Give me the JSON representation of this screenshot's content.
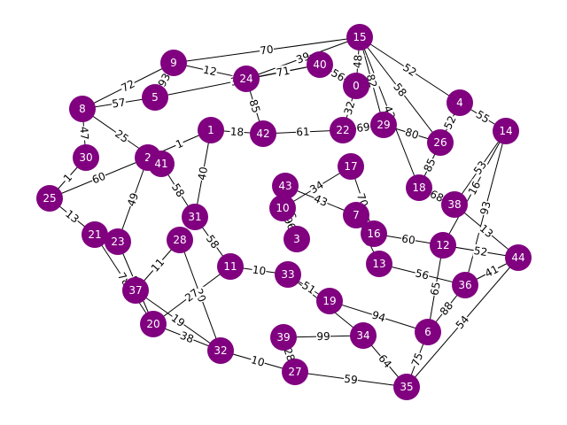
{
  "colors": {
    "node": "#800080",
    "node_text": "#ffffff",
    "edge": "#000000",
    "label_bg": "#ffffff",
    "background": "#ffffff"
  },
  "graph": {
    "nodes": [
      {
        "id": "0"
      },
      {
        "id": "1"
      },
      {
        "id": "2"
      },
      {
        "id": "3"
      },
      {
        "id": "4"
      },
      {
        "id": "5"
      },
      {
        "id": "6"
      },
      {
        "id": "7"
      },
      {
        "id": "8"
      },
      {
        "id": "9"
      },
      {
        "id": "10"
      },
      {
        "id": "11"
      },
      {
        "id": "12"
      },
      {
        "id": "13"
      },
      {
        "id": "14"
      },
      {
        "id": "15"
      },
      {
        "id": "16"
      },
      {
        "id": "17"
      },
      {
        "id": "18"
      },
      {
        "id": "19"
      },
      {
        "id": "20"
      },
      {
        "id": "21"
      },
      {
        "id": "22"
      },
      {
        "id": "23"
      },
      {
        "id": "24"
      },
      {
        "id": "25"
      },
      {
        "id": "26"
      },
      {
        "id": "27"
      },
      {
        "id": "28"
      },
      {
        "id": "29"
      },
      {
        "id": "30"
      },
      {
        "id": "31"
      },
      {
        "id": "32"
      },
      {
        "id": "33"
      },
      {
        "id": "34"
      },
      {
        "id": "35"
      },
      {
        "id": "36"
      },
      {
        "id": "37"
      },
      {
        "id": "38"
      },
      {
        "id": "39"
      },
      {
        "id": "40"
      },
      {
        "id": "41"
      },
      {
        "id": "42"
      },
      {
        "id": "43"
      },
      {
        "id": "44"
      }
    ],
    "edges": [
      {
        "source": "9",
        "target": "15",
        "weight": "70"
      },
      {
        "source": "9",
        "target": "8",
        "weight": "72"
      },
      {
        "source": "15",
        "target": "4",
        "weight": "52"
      },
      {
        "source": "15",
        "target": "26",
        "weight": "58"
      },
      {
        "source": "15",
        "target": "24",
        "weight": "39"
      },
      {
        "source": "15",
        "target": "0",
        "weight": "48"
      },
      {
        "source": "15",
        "target": "29",
        "weight": "82"
      },
      {
        "source": "15",
        "target": "18",
        "weight": "43"
      },
      {
        "source": "4",
        "target": "14",
        "weight": "55"
      },
      {
        "source": "4",
        "target": "26",
        "weight": "52"
      },
      {
        "source": "14",
        "target": "38",
        "weight": "53"
      },
      {
        "source": "14",
        "target": "12",
        "weight": "16"
      },
      {
        "source": "14",
        "target": "36",
        "weight": "93"
      },
      {
        "source": "8",
        "target": "30",
        "weight": "47"
      },
      {
        "source": "8",
        "target": "5",
        "weight": "57"
      },
      {
        "source": "8",
        "target": "41",
        "weight": "25"
      },
      {
        "source": "30",
        "target": "25",
        "weight": "1"
      },
      {
        "source": "25",
        "target": "21",
        "weight": "13"
      },
      {
        "source": "25",
        "target": "2",
        "weight": "60"
      },
      {
        "source": "21",
        "target": "20",
        "weight": "78"
      },
      {
        "source": "20",
        "target": "32",
        "weight": "38"
      },
      {
        "source": "32",
        "target": "27",
        "weight": "10"
      },
      {
        "source": "27",
        "target": "35",
        "weight": "59"
      },
      {
        "source": "35",
        "target": "6",
        "weight": "75"
      },
      {
        "source": "35",
        "target": "44",
        "weight": "54"
      },
      {
        "source": "36",
        "target": "44",
        "weight": "41"
      },
      {
        "source": "12",
        "target": "44",
        "weight": "52"
      },
      {
        "source": "38",
        "target": "44",
        "weight": "13"
      },
      {
        "source": "24",
        "target": "42",
        "weight": "85"
      },
      {
        "source": "40",
        "target": "24",
        "weight": "71"
      },
      {
        "source": "42",
        "target": "22",
        "weight": "61"
      },
      {
        "source": "23",
        "target": "20",
        "weight": "92"
      },
      {
        "source": "37",
        "target": "32",
        "weight": "19"
      },
      {
        "source": "34",
        "target": "35",
        "weight": "64"
      },
      {
        "source": "6",
        "target": "36",
        "weight": "88"
      },
      {
        "source": "11",
        "target": "33",
        "weight": "10"
      },
      {
        "source": "33",
        "target": "19",
        "weight": "51"
      },
      {
        "source": "1",
        "target": "42",
        "weight": "18"
      },
      {
        "source": "31",
        "target": "11",
        "weight": "58"
      },
      {
        "source": "3",
        "target": "43",
        "weight": "26"
      },
      {
        "source": "7",
        "target": "13",
        "weight": "30"
      },
      {
        "source": "17",
        "target": "10",
        "weight": "34"
      },
      {
        "source": "16",
        "target": "12",
        "weight": "60"
      },
      {
        "source": "18",
        "target": "38",
        "weight": "68"
      },
      {
        "source": "28",
        "target": "32",
        "weight": "20"
      },
      {
        "source": "39",
        "target": "34",
        "weight": "99"
      },
      {
        "source": "5",
        "target": "40",
        "weight": "33"
      },
      {
        "source": "9",
        "target": "24",
        "weight": "12"
      },
      {
        "source": "22",
        "target": "29",
        "weight": "69"
      },
      {
        "source": "0",
        "target": "22",
        "weight": "32"
      },
      {
        "source": "2",
        "target": "23",
        "weight": "49"
      },
      {
        "source": "41",
        "target": "31",
        "weight": "58"
      },
      {
        "source": "10",
        "target": "3",
        "weight": "96"
      },
      {
        "source": "19",
        "target": "6",
        "weight": "94"
      },
      {
        "source": "13",
        "target": "36",
        "weight": "56"
      },
      {
        "source": "26",
        "target": "18",
        "weight": "85"
      },
      {
        "source": "40",
        "target": "0",
        "weight": "56"
      },
      {
        "source": "9",
        "target": "5",
        "weight": "93"
      },
      {
        "source": "1",
        "target": "31",
        "weight": "40"
      },
      {
        "source": "43",
        "target": "7",
        "weight": "43"
      },
      {
        "source": "39",
        "target": "27",
        "weight": "28"
      },
      {
        "source": "20",
        "target": "11",
        "weight": "27"
      },
      {
        "source": "37",
        "target": "28",
        "weight": "11"
      },
      {
        "source": "17",
        "target": "16",
        "weight": "70"
      },
      {
        "source": "29",
        "target": "26",
        "weight": "80"
      },
      {
        "source": "33",
        "target": "34",
        "weight": "57"
      },
      {
        "source": "12",
        "target": "6",
        "weight": "65"
      },
      {
        "source": "2",
        "target": "1",
        "weight": "1"
      }
    ]
  }
}
